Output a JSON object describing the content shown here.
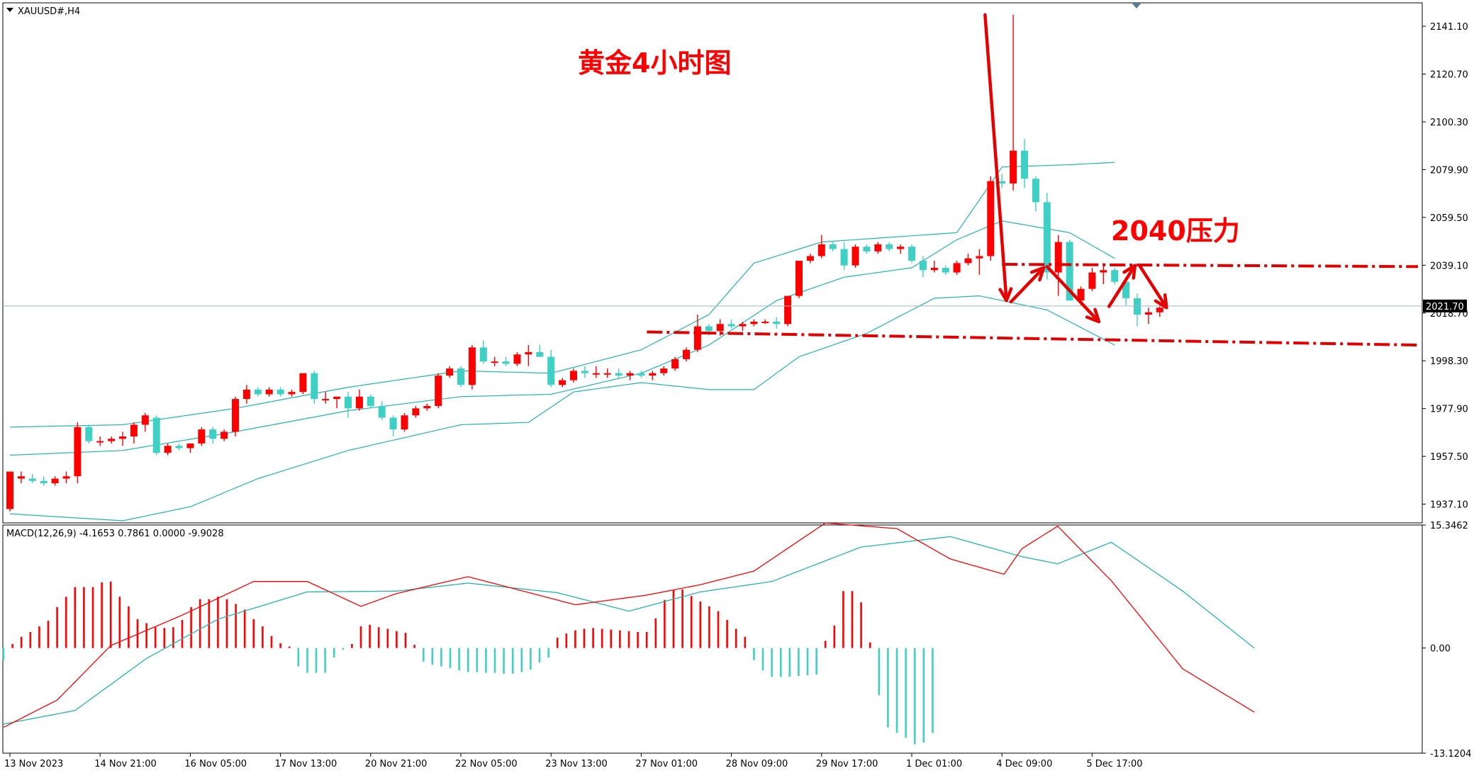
{
  "symbol_title": "XAUUSD#,H4",
  "annotations": {
    "chart_title": "黄金4小时图",
    "resistance_label": "2040压力"
  },
  "colors": {
    "bull": "#ff0000",
    "bear": "#3ecfc5",
    "band": "#21b5b0",
    "macd_line": "#ff0000",
    "signal_line": "#21b5b0",
    "arrow": "#e60000",
    "level_line": "#e00000",
    "current_price_line": "#9fb7c4"
  },
  "chart_data": [
    {
      "type": "candlestick",
      "symbol": "XAUUSD#",
      "timeframe": "H4",
      "price_axis_ticks": [
        "2141.10",
        "2120.70",
        "2100.30",
        "2079.90",
        "2059.50",
        "2039.10",
        "2018.70",
        "1998.30",
        "1977.90",
        "1957.50",
        "1937.10"
      ],
      "current_price": "2021.70",
      "ylim": [
        1929.1,
        2151.1
      ],
      "time_axis_labels": [
        {
          "label": "13 Nov 2023",
          "bar": 0
        },
        {
          "label": "14 Nov 21:00",
          "bar": 8
        },
        {
          "label": "16 Nov 05:00",
          "bar": 16
        },
        {
          "label": "17 Nov 13:00",
          "bar": 24
        },
        {
          "label": "20 Nov 21:00",
          "bar": 32
        },
        {
          "label": "22 Nov 05:00",
          "bar": 40
        },
        {
          "label": "23 Nov 13:00",
          "bar": 48
        },
        {
          "label": "27 Nov 01:00",
          "bar": 56
        },
        {
          "label": "28 Nov 09:00",
          "bar": 64
        },
        {
          "label": "29 Nov 17:00",
          "bar": 72
        },
        {
          "label": "1 Dec 01:00",
          "bar": 80
        },
        {
          "label": "4 Dec 09:00",
          "bar": 88
        },
        {
          "label": "5 Dec 17:00",
          "bar": 96
        }
      ],
      "candles": [
        {
          "o": 1935,
          "h": 1951,
          "l": 1934,
          "c": 1951
        },
        {
          "o": 1948,
          "h": 1951,
          "l": 1946,
          "c": 1949
        },
        {
          "o": 1948,
          "h": 1950,
          "l": 1946,
          "c": 1947
        },
        {
          "o": 1947,
          "h": 1949,
          "l": 1945,
          "c": 1946
        },
        {
          "o": 1946,
          "h": 1949,
          "l": 1945,
          "c": 1948
        },
        {
          "o": 1948,
          "h": 1951,
          "l": 1946,
          "c": 1949
        },
        {
          "o": 1949,
          "h": 1972,
          "l": 1946,
          "c": 1970
        },
        {
          "o": 1970,
          "h": 1971,
          "l": 1963,
          "c": 1964
        },
        {
          "o": 1964,
          "h": 1966,
          "l": 1962,
          "c": 1964
        },
        {
          "o": 1964,
          "h": 1966,
          "l": 1963,
          "c": 1965
        },
        {
          "o": 1965,
          "h": 1968,
          "l": 1962,
          "c": 1966
        },
        {
          "o": 1966,
          "h": 1972,
          "l": 1963,
          "c": 1971
        },
        {
          "o": 1971,
          "h": 1976,
          "l": 1968,
          "c": 1975
        },
        {
          "o": 1974,
          "h": 1975,
          "l": 1958,
          "c": 1959
        },
        {
          "o": 1959,
          "h": 1963,
          "l": 1958,
          "c": 1962
        },
        {
          "o": 1962,
          "h": 1963,
          "l": 1960,
          "c": 1961
        },
        {
          "o": 1961,
          "h": 1963,
          "l": 1959,
          "c": 1963
        },
        {
          "o": 1963,
          "h": 1970,
          "l": 1962,
          "c": 1969
        },
        {
          "o": 1969,
          "h": 1970,
          "l": 1963,
          "c": 1965
        },
        {
          "o": 1965,
          "h": 1969,
          "l": 1964,
          "c": 1968
        },
        {
          "o": 1968,
          "h": 1983,
          "l": 1966,
          "c": 1982
        },
        {
          "o": 1982,
          "h": 1988,
          "l": 1980,
          "c": 1986
        },
        {
          "o": 1986,
          "h": 1987,
          "l": 1983,
          "c": 1984
        },
        {
          "o": 1984,
          "h": 1987,
          "l": 1983,
          "c": 1986
        },
        {
          "o": 1986,
          "h": 1987,
          "l": 1983,
          "c": 1984
        },
        {
          "o": 1984,
          "h": 1986,
          "l": 1983,
          "c": 1985
        },
        {
          "o": 1985,
          "h": 1993,
          "l": 1984,
          "c": 1993
        },
        {
          "o": 1993,
          "h": 1994,
          "l": 1980,
          "c": 1982
        },
        {
          "o": 1982,
          "h": 1985,
          "l": 1980,
          "c": 1982
        },
        {
          "o": 1982,
          "h": 1983,
          "l": 1978,
          "c": 1983
        },
        {
          "o": 1983,
          "h": 1985,
          "l": 1974,
          "c": 1978
        },
        {
          "o": 1978,
          "h": 1986,
          "l": 1977,
          "c": 1983
        },
        {
          "o": 1983,
          "h": 1984,
          "l": 1978,
          "c": 1979
        },
        {
          "o": 1979,
          "h": 1981,
          "l": 1973,
          "c": 1974
        },
        {
          "o": 1974,
          "h": 1975,
          "l": 1966,
          "c": 1969
        },
        {
          "o": 1969,
          "h": 1976,
          "l": 1968,
          "c": 1975
        },
        {
          "o": 1975,
          "h": 1979,
          "l": 1974,
          "c": 1978
        },
        {
          "o": 1978,
          "h": 1980,
          "l": 1977,
          "c": 1979
        },
        {
          "o": 1979,
          "h": 1993,
          "l": 1978,
          "c": 1992
        },
        {
          "o": 1992,
          "h": 1996,
          "l": 1991,
          "c": 1995
        },
        {
          "o": 1995,
          "h": 1996,
          "l": 1987,
          "c": 1988
        },
        {
          "o": 1988,
          "h": 2005,
          "l": 1986,
          "c": 2004
        },
        {
          "o": 2004,
          "h": 2007,
          "l": 1997,
          "c": 1998
        },
        {
          "o": 1998,
          "h": 2000,
          "l": 1996,
          "c": 1998
        },
        {
          "o": 1998,
          "h": 2000,
          "l": 1996,
          "c": 1997
        },
        {
          "o": 1997,
          "h": 2002,
          "l": 1996,
          "c": 2001
        },
        {
          "o": 2001,
          "h": 2005,
          "l": 1996,
          "c": 2002
        },
        {
          "o": 2002,
          "h": 2005,
          "l": 2000,
          "c": 2000
        },
        {
          "o": 2000,
          "h": 2003,
          "l": 1987,
          "c": 1988
        },
        {
          "o": 1988,
          "h": 1991,
          "l": 1987,
          "c": 1990
        },
        {
          "o": 1990,
          "h": 1995,
          "l": 1989,
          "c": 1994
        },
        {
          "o": 1994,
          "h": 1996,
          "l": 1991,
          "c": 1993
        },
        {
          "o": 1993,
          "h": 1996,
          "l": 1991,
          "c": 1993
        },
        {
          "o": 1993,
          "h": 1995,
          "l": 1991,
          "c": 1993
        },
        {
          "o": 1993,
          "h": 1995,
          "l": 1991,
          "c": 1992
        },
        {
          "o": 1992,
          "h": 1994,
          "l": 1990,
          "c": 1993
        },
        {
          "o": 1993,
          "h": 1994,
          "l": 1991,
          "c": 1992
        },
        {
          "o": 1992,
          "h": 1994,
          "l": 1990,
          "c": 1993
        },
        {
          "o": 1993,
          "h": 1996,
          "l": 1992,
          "c": 1995
        },
        {
          "o": 1995,
          "h": 2000,
          "l": 1994,
          "c": 1999
        },
        {
          "o": 1999,
          "h": 2004,
          "l": 1998,
          "c": 2003
        },
        {
          "o": 2003,
          "h": 2018,
          "l": 2002,
          "c": 2013
        },
        {
          "o": 2013,
          "h": 2014,
          "l": 2009,
          "c": 2011
        },
        {
          "o": 2011,
          "h": 2016,
          "l": 2009,
          "c": 2014
        },
        {
          "o": 2014,
          "h": 2016,
          "l": 2012,
          "c": 2013
        },
        {
          "o": 2013,
          "h": 2015,
          "l": 2011,
          "c": 2014
        },
        {
          "o": 2014,
          "h": 2016,
          "l": 2013,
          "c": 2015
        },
        {
          "o": 2015,
          "h": 2016,
          "l": 2014,
          "c": 2015
        },
        {
          "o": 2015,
          "h": 2017,
          "l": 2012,
          "c": 2014
        },
        {
          "o": 2014,
          "h": 2026,
          "l": 2013,
          "c": 2026
        },
        {
          "o": 2026,
          "h": 2041,
          "l": 2025,
          "c": 2041
        },
        {
          "o": 2041,
          "h": 2044,
          "l": 2040,
          "c": 2043
        },
        {
          "o": 2043,
          "h": 2052,
          "l": 2042,
          "c": 2048
        },
        {
          "o": 2048,
          "h": 2049,
          "l": 2045,
          "c": 2046
        },
        {
          "o": 2046,
          "h": 2049,
          "l": 2037,
          "c": 2039
        },
        {
          "o": 2039,
          "h": 2048,
          "l": 2038,
          "c": 2047
        },
        {
          "o": 2047,
          "h": 2048,
          "l": 2044,
          "c": 2045
        },
        {
          "o": 2045,
          "h": 2049,
          "l": 2044,
          "c": 2048
        },
        {
          "o": 2048,
          "h": 2049,
          "l": 2045,
          "c": 2046
        },
        {
          "o": 2046,
          "h": 2048,
          "l": 2044,
          "c": 2047
        },
        {
          "o": 2047,
          "h": 2048,
          "l": 2040,
          "c": 2041
        },
        {
          "o": 2041,
          "h": 2043,
          "l": 2034,
          "c": 2037
        },
        {
          "o": 2037,
          "h": 2041,
          "l": 2036,
          "c": 2038
        },
        {
          "o": 2038,
          "h": 2039,
          "l": 2035,
          "c": 2036
        },
        {
          "o": 2036,
          "h": 2041,
          "l": 2035,
          "c": 2040
        },
        {
          "o": 2040,
          "h": 2044,
          "l": 2039,
          "c": 2042
        },
        {
          "o": 2042,
          "h": 2046,
          "l": 2035,
          "c": 2043
        },
        {
          "o": 2043,
          "h": 2077,
          "l": 2041,
          "c": 2075
        },
        {
          "o": 2075,
          "h": 2078,
          "l": 2072,
          "c": 2074
        },
        {
          "o": 2074,
          "h": 2146,
          "l": 2071,
          "c": 2088
        },
        {
          "o": 2088,
          "h": 2093,
          "l": 2072,
          "c": 2076
        },
        {
          "o": 2076,
          "h": 2077,
          "l": 2062,
          "c": 2066
        },
        {
          "o": 2066,
          "h": 2070,
          "l": 2033,
          "c": 2036
        },
        {
          "o": 2036,
          "h": 2052,
          "l": 2026,
          "c": 2049
        },
        {
          "o": 2049,
          "h": 2050,
          "l": 2024,
          "c": 2024
        },
        {
          "o": 2024,
          "h": 2030,
          "l": 2022,
          "c": 2029
        },
        {
          "o": 2029,
          "h": 2038,
          "l": 2028,
          "c": 2036
        },
        {
          "o": 2036,
          "h": 2040,
          "l": 2031,
          "c": 2037
        },
        {
          "o": 2037,
          "h": 2038,
          "l": 2031,
          "c": 2032
        },
        {
          "o": 2032,
          "h": 2034,
          "l": 2022,
          "c": 2025
        },
        {
          "o": 2025,
          "h": 2027,
          "l": 2013,
          "c": 2018
        },
        {
          "o": 2018,
          "h": 2021,
          "l": 2014,
          "c": 2019
        },
        {
          "o": 2019,
          "h": 2022,
          "l": 2017,
          "c": 2021
        }
      ],
      "bollinger": {
        "upper_anchors": [
          [
            0,
            1970
          ],
          [
            10,
            1971
          ],
          [
            20,
            1978
          ],
          [
            30,
            1987
          ],
          [
            40,
            1994
          ],
          [
            48,
            1993
          ],
          [
            56,
            2003
          ],
          [
            62,
            2018
          ],
          [
            66,
            2040
          ],
          [
            72,
            2049
          ],
          [
            78,
            2051
          ],
          [
            84,
            2053
          ],
          [
            88,
            2081
          ],
          [
            94,
            2082
          ],
          [
            98,
            2083
          ]
        ],
        "middle_anchors": [
          [
            0,
            1958
          ],
          [
            10,
            1960
          ],
          [
            20,
            1968
          ],
          [
            30,
            1977
          ],
          [
            40,
            1983
          ],
          [
            48,
            1984
          ],
          [
            56,
            1993
          ],
          [
            62,
            2005
          ],
          [
            68,
            2024
          ],
          [
            74,
            2034
          ],
          [
            80,
            2038
          ],
          [
            84,
            2050
          ],
          [
            88,
            2058
          ],
          [
            94,
            2053
          ],
          [
            98,
            2042
          ]
        ],
        "lower_anchors": [
          [
            0,
            1933
          ],
          [
            10,
            1930
          ],
          [
            16,
            1936
          ],
          [
            22,
            1948
          ],
          [
            30,
            1960
          ],
          [
            40,
            1971
          ],
          [
            46,
            1972
          ],
          [
            50,
            1985
          ],
          [
            56,
            1989
          ],
          [
            62,
            1986
          ],
          [
            66,
            1986
          ],
          [
            70,
            2000
          ],
          [
            76,
            2010
          ],
          [
            82,
            2025
          ],
          [
            86,
            2026
          ],
          [
            92,
            2020
          ],
          [
            98,
            2005
          ]
        ]
      }
    },
    {
      "type": "macd",
      "indicator_label": "MACD(12,26,9) -4.1653 0.7861 0.0000 -9.9028",
      "axis_ticks": [
        "15.3462",
        "0.00",
        "-13.1204"
      ],
      "ylim": [
        -13.1204,
        15.3462
      ],
      "histogram": [
        -1.5,
        0.5,
        1.4,
        2,
        2.7,
        3.4,
        5.1,
        6.4,
        7.6,
        7.6,
        7.6,
        8.2,
        8.3,
        6.4,
        5.2,
        3.6,
        3.1,
        2.6,
        2.5,
        2.6,
        3.5,
        5.1,
        6.1,
        6.1,
        6.4,
        6.1,
        5.5,
        4.8,
        3.6,
        2.7,
        1.5,
        0.6,
        0.2,
        -2.3,
        -3.1,
        -3.1,
        -3.1,
        -1.2,
        -0.2,
        0.5,
        2.7,
        2.9,
        2.6,
        2.4,
        2.1,
        1.9,
        0.4,
        -1.7,
        -2.1,
        -2.3,
        -2.5,
        -2.8,
        -3,
        -3,
        -3.1,
        -3.1,
        -3.2,
        -3.2,
        -3,
        -2.7,
        -1.8,
        -1.2,
        1.3,
        1.8,
        2.2,
        2.4,
        2.5,
        2.4,
        2.3,
        2.2,
        2.1,
        2,
        2,
        3.7,
        6,
        7.2,
        7.3,
        6.5,
        5.8,
        5.2,
        4.6,
        3.5,
        2.4,
        1.4,
        -1.5,
        -2.8,
        -3.6,
        -3.6,
        -3.6,
        -3.5,
        -3.4,
        -3.3,
        0.9,
        2.8,
        7.1,
        7.1,
        5.7,
        0.7,
        -5.9,
        -9.9,
        -10.6,
        -11.2,
        -12,
        -11.8,
        -10.6
      ],
      "macd_anchors": [
        [
          0,
          -9.9
        ],
        [
          6,
          -6.5
        ],
        [
          12,
          0.3
        ],
        [
          20,
          4.1
        ],
        [
          28,
          8.3
        ],
        [
          34,
          8.3
        ],
        [
          40,
          5.2
        ],
        [
          44,
          6.8
        ],
        [
          52,
          8.9
        ],
        [
          64,
          5.4
        ],
        [
          72,
          6.6
        ],
        [
          78,
          7.9
        ],
        [
          84,
          9.6
        ],
        [
          92,
          15.6
        ],
        [
          100,
          14.9
        ],
        [
          106,
          11.1
        ],
        [
          112,
          9.2
        ],
        [
          114,
          12.4
        ],
        [
          118,
          15.2
        ],
        [
          124,
          8.4
        ],
        [
          132,
          -2.6
        ],
        [
          140,
          -8
        ]
      ],
      "signal_anchors": [
        [
          0,
          -9.5
        ],
        [
          8,
          -7.8
        ],
        [
          16,
          -1.3
        ],
        [
          24,
          3.6
        ],
        [
          34,
          7
        ],
        [
          44,
          7.1
        ],
        [
          52,
          8.1
        ],
        [
          62,
          6.9
        ],
        [
          70,
          4.6
        ],
        [
          78,
          7
        ],
        [
          86,
          8.3
        ],
        [
          96,
          12.6
        ],
        [
          106,
          13.9
        ],
        [
          114,
          11.4
        ],
        [
          118,
          10.5
        ],
        [
          124,
          13.2
        ],
        [
          132,
          7.1
        ],
        [
          140,
          0
        ]
      ]
    }
  ]
}
